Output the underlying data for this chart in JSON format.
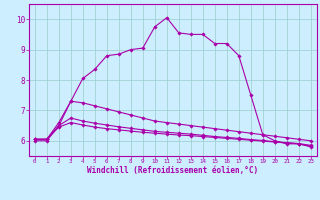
{
  "background_color": "#cceeff",
  "line_color": "#aa00aa",
  "grid_color": "#99cccc",
  "xlabel": "Windchill (Refroidissement éolien,°C)",
  "xlim": [
    -0.5,
    23.5
  ],
  "ylim": [
    5.5,
    10.5
  ],
  "yticks": [
    6,
    7,
    8,
    9,
    10
  ],
  "xticks": [
    0,
    1,
    2,
    3,
    4,
    5,
    6,
    7,
    8,
    9,
    10,
    11,
    12,
    13,
    14,
    15,
    16,
    17,
    18,
    19,
    20,
    21,
    22,
    23
  ],
  "series": [
    {
      "x": [
        0,
        1,
        2,
        3,
        4,
        5,
        6,
        7,
        8,
        9,
        10,
        11,
        12,
        13,
        14,
        15,
        16,
        17,
        18,
        19,
        20,
        21,
        22,
        23
      ],
      "y": [
        6.0,
        6.0,
        6.5,
        7.3,
        8.05,
        8.35,
        8.8,
        8.85,
        9.0,
        9.05,
        9.75,
        10.05,
        9.55,
        9.5,
        9.5,
        9.2,
        9.2,
        8.8,
        7.5,
        6.2,
        6.0,
        5.9,
        5.9,
        5.8
      ]
    },
    {
      "x": [
        0,
        1,
        2,
        3,
        4,
        5,
        6,
        7,
        8,
        9,
        10,
        11,
        12,
        13,
        14,
        15,
        16,
        17,
        18,
        19,
        20,
        21,
        22,
        23
      ],
      "y": [
        6.05,
        6.05,
        6.6,
        7.3,
        7.25,
        7.15,
        7.05,
        6.95,
        6.85,
        6.75,
        6.65,
        6.6,
        6.55,
        6.5,
        6.45,
        6.4,
        6.35,
        6.3,
        6.25,
        6.2,
        6.15,
        6.1,
        6.05,
        6.0
      ]
    },
    {
      "x": [
        0,
        1,
        2,
        3,
        4,
        5,
        6,
        7,
        8,
        9,
        10,
        11,
        12,
        13,
        14,
        15,
        16,
        17,
        18,
        19,
        20,
        21,
        22,
        23
      ],
      "y": [
        6.05,
        6.05,
        6.5,
        6.75,
        6.65,
        6.58,
        6.52,
        6.46,
        6.41,
        6.36,
        6.31,
        6.28,
        6.25,
        6.22,
        6.18,
        6.14,
        6.11,
        6.08,
        6.04,
        6.01,
        5.97,
        5.94,
        5.91,
        5.85
      ]
    },
    {
      "x": [
        0,
        1,
        2,
        3,
        4,
        5,
        6,
        7,
        8,
        9,
        10,
        11,
        12,
        13,
        14,
        15,
        16,
        17,
        18,
        19,
        20,
        21,
        22,
        23
      ],
      "y": [
        6.05,
        6.05,
        6.45,
        6.6,
        6.52,
        6.45,
        6.4,
        6.36,
        6.32,
        6.28,
        6.25,
        6.22,
        6.19,
        6.17,
        6.14,
        6.11,
        6.08,
        6.05,
        6.02,
        5.99,
        5.96,
        5.93,
        5.9,
        5.82
      ]
    }
  ]
}
